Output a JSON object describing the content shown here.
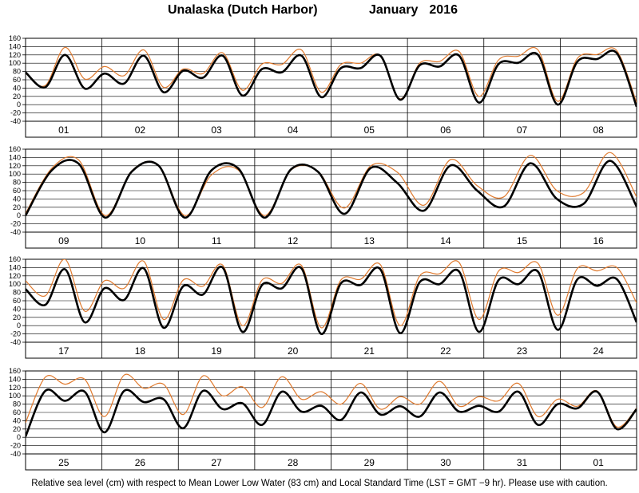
{
  "header": {
    "station": "Unalaska (Dutch Harbor)",
    "month": "January",
    "year": "2016"
  },
  "footnote": "Relative sea level (cm) with respect to Mean Lower Low Water (83 cm) and Local Standard Time (LST = GMT −9 hr). Please use with caution.",
  "colors": {
    "predicted": "#000000",
    "observed": "#e07a2e",
    "grid": "#000000"
  },
  "chart_data": [
    {
      "type": "line",
      "days": [
        "01",
        "02",
        "03",
        "04",
        "05",
        "06",
        "07",
        "08"
      ],
      "ylim": [
        -40,
        160
      ],
      "yticks": [
        -40,
        -20,
        0,
        20,
        40,
        60,
        80,
        100,
        120,
        140,
        160
      ],
      "series": [
        {
          "style": "thick-black",
          "values": [
            78,
            42,
            120,
            39,
            75,
            51,
            118,
            30,
            82,
            65,
            118,
            22,
            86,
            78,
            118,
            18,
            88,
            88,
            118,
            12,
            95,
            92,
            118,
            5,
            98,
            101,
            120,
            0,
            104,
            110,
            124,
            -5
          ]
        },
        {
          "style": "thin-orange",
          "values": [
            76,
            46,
            138,
            62,
            92,
            70,
            132,
            42,
            86,
            75,
            125,
            35,
            98,
            97,
            132,
            30,
            97,
            100,
            118,
            14,
            100,
            104,
            128,
            20,
            108,
            117,
            132,
            8,
            112,
            121,
            130,
            5
          ]
        }
      ]
    },
    {
      "type": "line",
      "days": [
        "09",
        "10",
        "11",
        "12",
        "13",
        "14",
        "15",
        "16"
      ],
      "ylim": [
        -40,
        160
      ],
      "yticks": [
        -40,
        -20,
        0,
        20,
        40,
        60,
        80,
        100,
        120,
        140,
        160
      ],
      "series": [
        {
          "style": "thick-black",
          "values": [
            0,
            110,
            125,
            -5,
            106,
            121,
            -5,
            109,
            114,
            -5,
            112,
            106,
            4,
            115,
            78,
            12,
            121,
            60,
            22,
            126,
            40,
            28,
            132,
            22
          ]
        },
        {
          "style": "thin-orange",
          "values": [
            5,
            115,
            134,
            0,
            108,
            122,
            0,
            98,
            110,
            0,
            110,
            107,
            18,
            120,
            104,
            25,
            135,
            72,
            45,
            145,
            60,
            55,
            152,
            45
          ]
        }
      ]
    },
    {
      "type": "line",
      "days": [
        "17",
        "18",
        "19",
        "20",
        "21",
        "22",
        "23",
        "24"
      ],
      "ylim": [
        -40,
        160
      ],
      "yticks": [
        -40,
        -20,
        0,
        20,
        40,
        60,
        80,
        100,
        120,
        140,
        160
      ],
      "series": [
        {
          "style": "thick-black",
          "values": [
            88,
            50,
            136,
            8,
            90,
            62,
            138,
            -5,
            95,
            75,
            140,
            -15,
            98,
            90,
            138,
            -20,
            102,
            98,
            136,
            -18,
            105,
            100,
            130,
            -15,
            110,
            100,
            130,
            -10,
            112,
            96,
            112,
            8
          ]
        },
        {
          "style": "thin-orange",
          "values": [
            108,
            72,
            160,
            35,
            108,
            90,
            155,
            15,
            110,
            95,
            146,
            0,
            110,
            102,
            145,
            -5,
            110,
            112,
            147,
            0,
            120,
            125,
            152,
            15,
            132,
            128,
            150,
            25,
            138,
            132,
            140,
            55
          ]
        }
      ]
    },
    {
      "type": "line",
      "days": [
        "25",
        "26",
        "27",
        "28",
        "29",
        "30",
        "31",
        "01"
      ],
      "ylim": [
        -40,
        160
      ],
      "yticks": [
        -40,
        -20,
        0,
        20,
        40,
        60,
        80,
        100,
        120,
        140,
        160
      ],
      "series": [
        {
          "style": "thick-black",
          "values": [
            2,
            112,
            88,
            110,
            12,
            112,
            85,
            92,
            22,
            112,
            68,
            82,
            30,
            110,
            62,
            76,
            42,
            108,
            55,
            75,
            50,
            108,
            62,
            76,
            62,
            110,
            30,
            80,
            70,
            110,
            20,
            68
          ]
        },
        {
          "style": "thin-orange",
          "values": [
            35,
            145,
            128,
            140,
            50,
            150,
            118,
            128,
            55,
            148,
            100,
            122,
            72,
            146,
            92,
            110,
            80,
            130,
            68,
            98,
            80,
            135,
            75,
            98,
            88,
            130,
            50,
            92,
            75,
            112,
            25,
            70
          ]
        }
      ]
    }
  ]
}
